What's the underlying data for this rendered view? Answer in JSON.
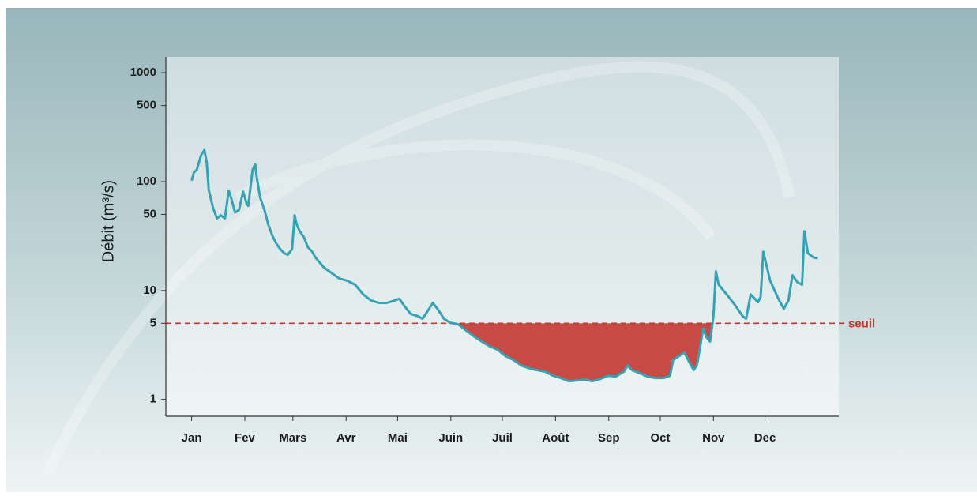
{
  "chart_data": {
    "type": "line",
    "y_label": "Débit (m³/s)",
    "log_y": true,
    "x": [
      0,
      1.4,
      3,
      5.5,
      7.4,
      8.8,
      10,
      12.4,
      14.7,
      17,
      19.4,
      21.6,
      23,
      25.3,
      27.6,
      30,
      32,
      33,
      35.5,
      37,
      38,
      40,
      42.4,
      44.7,
      47,
      49.3,
      51.6,
      53.9,
      56,
      58.5,
      60,
      61.3,
      63,
      65.4,
      67.7,
      70,
      72.3,
      77,
      81.5,
      86,
      90.7,
      95.3,
      100,
      104.5,
      109,
      113.7,
      118.4,
      121,
      124,
      127.6,
      132,
      134.5,
      137,
      140.5,
      143.8,
      147,
      150.6,
      155.2,
      159.8,
      164.4,
      169,
      173.6,
      178,
      182.9,
      187.5,
      192,
      197,
      201,
      206,
      210.5,
      215,
      219.7,
      224,
      228.9,
      233.5,
      238,
      242.7,
      247,
      251.9,
      254,
      256.5,
      261,
      265.6,
      270,
      275,
      278.7,
      280.5,
      284,
      287,
      289.9,
      292.5,
      294.3,
      296,
      298,
      300,
      302,
      304,
      305.4,
      307,
      312,
      316.4,
      321,
      323,
      325.7,
      330,
      331.5,
      333,
      337,
      341.8,
      345,
      347.7,
      350,
      353,
      355.6,
      357,
      359,
      362.5,
      364.8
    ],
    "series": [
      {
        "color": "#35a3b3",
        "values": [
          102,
          122,
          128,
          175,
          195,
          150,
          84,
          58,
          46,
          49,
          46,
          83,
          71,
          52,
          55,
          81,
          63,
          60,
          128,
          144,
          108,
          71,
          55,
          40,
          32,
          27,
          24,
          22,
          21.3,
          24,
          49,
          40,
          35,
          31,
          25,
          23,
          20,
          16.3,
          14.5,
          12.9,
          12.3,
          11.3,
          9.2,
          8.1,
          7.7,
          7.7,
          8.1,
          8.4,
          7.2,
          6.1,
          5.8,
          5.5,
          6.3,
          7.7,
          6.6,
          5.5,
          5.06,
          4.9,
          4.3,
          3.8,
          3.4,
          3.07,
          2.87,
          2.5,
          2.3,
          2.05,
          1.92,
          1.86,
          1.8,
          1.65,
          1.57,
          1.47,
          1.49,
          1.52,
          1.47,
          1.54,
          1.65,
          1.62,
          1.8,
          2.05,
          1.86,
          1.74,
          1.62,
          1.57,
          1.57,
          1.65,
          2.3,
          2.5,
          2.7,
          2.2,
          1.86,
          2.05,
          2.87,
          4.5,
          3.7,
          3.4,
          5.8,
          15,
          11.3,
          9.1,
          7.4,
          5.8,
          5.5,
          9.2,
          7.8,
          8.8,
          22.7,
          12.3,
          8.4,
          6.8,
          8.1,
          13.8,
          11.9,
          11.3,
          35,
          22,
          20,
          19.8
        ]
      }
    ],
    "threshold": {
      "value": 5,
      "label": "seuil",
      "color": "#c0392b",
      "fill": "#c84a45"
    },
    "xlim": [
      -15,
      377
    ],
    "xticks": [
      {
        "value": 0,
        "label": "Jan"
      },
      {
        "value": 31,
        "label": "Fev"
      },
      {
        "value": 59,
        "label": "Mars"
      },
      {
        "value": 90,
        "label": "Avr"
      },
      {
        "value": 120,
        "label": "Mai"
      },
      {
        "value": 151,
        "label": "Juin"
      },
      {
        "value": 181,
        "label": "Juil"
      },
      {
        "value": 212,
        "label": "Août"
      },
      {
        "value": 243,
        "label": "Sep"
      },
      {
        "value": 273,
        "label": "Oct"
      },
      {
        "value": 304,
        "label": "Nov"
      },
      {
        "value": 334,
        "label": "Dec"
      }
    ],
    "ylim": [
      0.7,
      1400
    ],
    "yticks": [
      1,
      5,
      10,
      50,
      100,
      500,
      1000
    ]
  }
}
